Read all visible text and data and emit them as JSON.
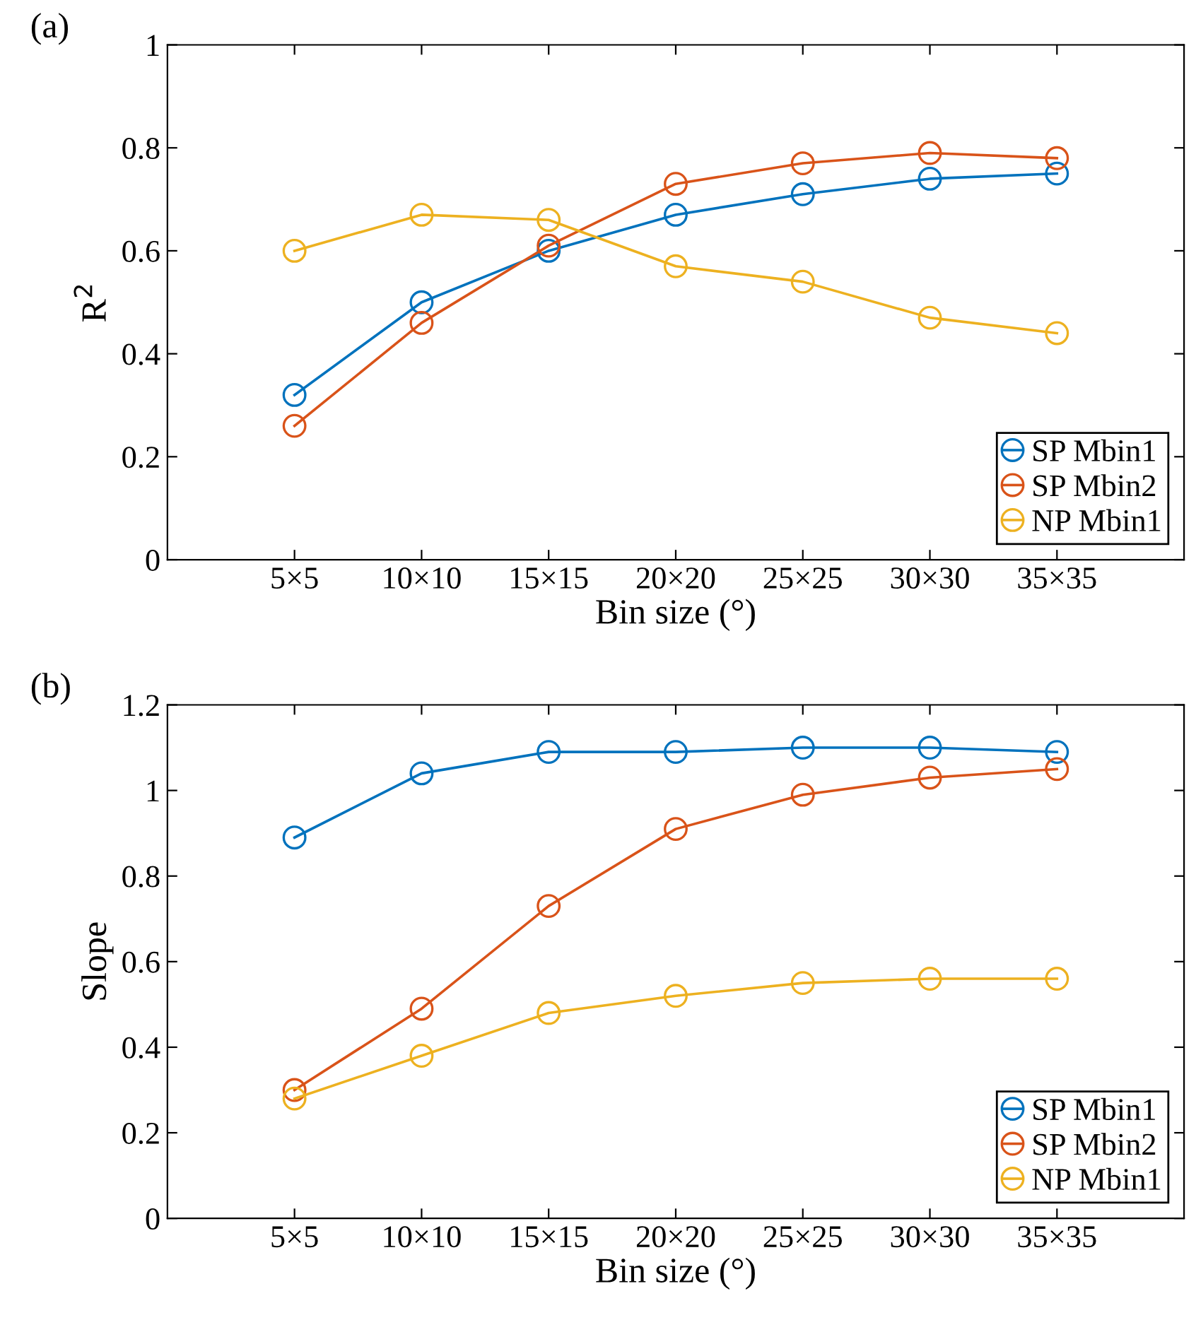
{
  "chart_data": [
    {
      "type": "line",
      "title": "(a)",
      "xlabel": "Bin size (°)",
      "ylabel": "R$^{2}$",
      "categories": [
        "5×5",
        "10×10",
        "15×15",
        "20×20",
        "25×25",
        "30×30",
        "35×35"
      ],
      "series": [
        {
          "name": "SP Mbin1",
          "color": "#0072bd",
          "values": [
            0.32,
            0.5,
            0.6,
            0.67,
            0.71,
            0.74,
            0.75
          ]
        },
        {
          "name": "SP Mbin2",
          "color": "#d95319",
          "values": [
            0.26,
            0.46,
            0.61,
            0.73,
            0.77,
            0.79,
            0.78
          ]
        },
        {
          "name": "NP Mbin1",
          "color": "#edb120",
          "values": [
            0.6,
            0.67,
            0.66,
            0.57,
            0.54,
            0.47,
            0.44
          ]
        }
      ],
      "ylim": [
        0,
        1
      ],
      "yticks": [
        0,
        0.2,
        0.4,
        0.6,
        0.8,
        1
      ],
      "grid": false,
      "legend": "bottom right",
      "marker": "circle",
      "line_style": "solid"
    },
    {
      "type": "line",
      "title": "(b)",
      "xlabel": "Bin size (°)",
      "ylabel": "Slope",
      "categories": [
        "5×5",
        "10×10",
        "15×15",
        "20×20",
        "25×25",
        "30×30",
        "35×35"
      ],
      "series": [
        {
          "name": "SP Mbin1",
          "color": "#0072bd",
          "values": [
            0.89,
            1.04,
            1.09,
            1.09,
            1.1,
            1.1,
            1.09
          ]
        },
        {
          "name": "SP Mbin2",
          "color": "#d95319",
          "values": [
            0.3,
            0.49,
            0.73,
            0.91,
            0.99,
            1.03,
            1.05
          ]
        },
        {
          "name": "NP Mbin1",
          "color": "#edb120",
          "values": [
            0.28,
            0.38,
            0.48,
            0.52,
            0.55,
            0.56,
            0.56
          ]
        }
      ],
      "ylim": [
        0,
        1.2
      ],
      "yticks": [
        0,
        0.2,
        0.4,
        0.6,
        0.8,
        1,
        1.2
      ],
      "grid": false,
      "legend": "bottom right",
      "marker": "circle",
      "line_style": "solid"
    }
  ]
}
